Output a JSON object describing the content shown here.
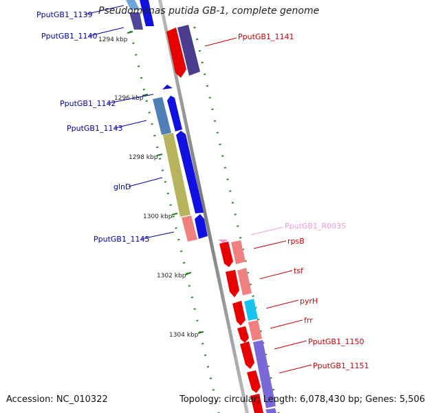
{
  "title": "Pseudomonas putida GB-1, complete genome",
  "colors": {
    "backbone": "#8c8c8c",
    "tick_minor": "#2e8b2e",
    "left_label": "#0000aa",
    "right_label": "#cc0000",
    "rna_label": "#f29ad0"
  },
  "kbp_ticks": [
    "1294 kbp",
    "1296 kbp",
    "1298 kbp",
    "1300 kbp",
    "1302 kbp",
    "1304 kbp"
  ],
  "genes_left": [
    {
      "label": "PputGB1_1139"
    },
    {
      "label": "PputGB1_1140"
    },
    {
      "label": "PputGB1_1142"
    },
    {
      "label": "PputGB1_1143"
    },
    {
      "label": "glnD"
    },
    {
      "label": "PputGB1_1145"
    }
  ],
  "genes_right": [
    {
      "label": "PputGB1_1141"
    },
    {
      "label": "PputGB1_R0035"
    },
    {
      "label": "rpsB"
    },
    {
      "label": "tsf"
    },
    {
      "label": "pyrH"
    },
    {
      "label": "frr"
    },
    {
      "label": "PputGB1_1150"
    },
    {
      "label": "PputGB1_1151"
    }
  ],
  "footer": {
    "accession": "Accession: NC_010322",
    "topology": "Topology: circular; Length: 6,078,430 bp; Genes: 5,506"
  }
}
